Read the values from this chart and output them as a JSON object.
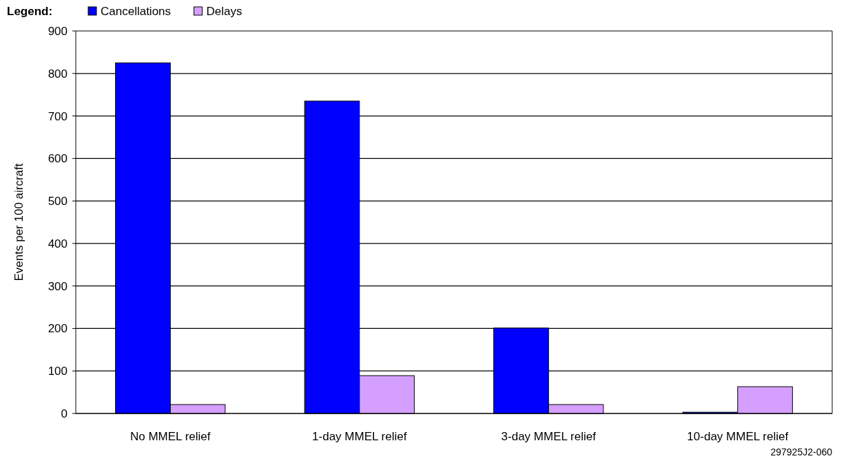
{
  "chart_data": {
    "type": "bar",
    "legend_title": "Legend:",
    "ylabel": "Events per 100 aircraft",
    "categories": [
      "No MMEL relief",
      "1-day MMEL relief",
      "3-day MMEL relief",
      "10-day MMEL relief"
    ],
    "series": [
      {
        "name": "Cancellations",
        "color": "#0000ff",
        "values": [
          825,
          735,
          201,
          3
        ]
      },
      {
        "name": "Delays",
        "color": "#d49fff",
        "values": [
          21,
          89,
          21,
          63
        ]
      }
    ],
    "ylim": [
      0,
      900
    ],
    "yticks": [
      0,
      100,
      200,
      300,
      400,
      500,
      600,
      700,
      800,
      900
    ],
    "grid": "y",
    "legend": "top left",
    "annotations": [
      "297925J2-060"
    ]
  }
}
